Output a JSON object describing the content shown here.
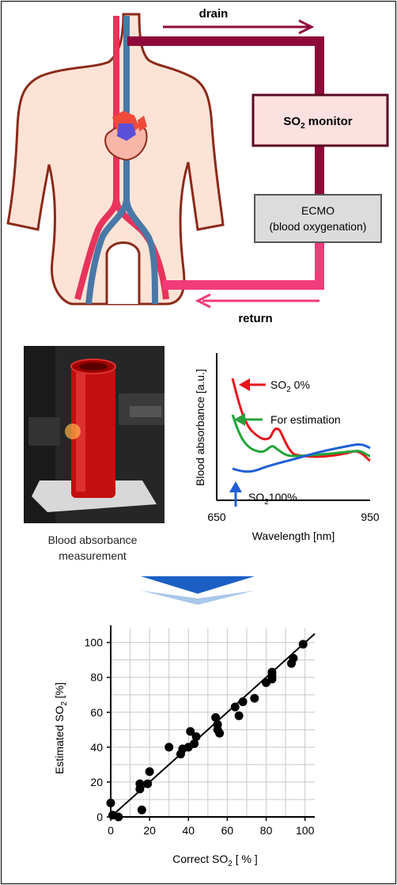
{
  "diagram": {
    "drain_label": "drain",
    "return_label": "return",
    "monitor_label": "SO",
    "monitor_sub": "2",
    "monitor_suffix": " monitor",
    "ecmo_line1": "ECMO",
    "ecmo_line2": "(blood oxygenation)"
  },
  "photo": {
    "caption_line1": "Blood absorbance",
    "caption_line2": "measurement"
  },
  "spectrum": {
    "ylabel": "Blood absorbance [a.u.]",
    "xlabel": "Wavelength [nm]",
    "x_min_label": "650",
    "x_max_label": "950",
    "so2_0_label": "SO",
    "so2_0_sub": "2",
    "so2_0_suffix": " 0%",
    "estimation_label": "For estimation",
    "so2_100_label": "SO",
    "so2_100_sub": "2",
    "so2_100_suffix": "100%",
    "colors": {
      "so2_0": "#e8141c",
      "estimation": "#23a33a",
      "so2_100": "#1f5fd6"
    }
  },
  "chart_data": {
    "type": "scatter",
    "xlabel": "Correct SO",
    "xlabel_sub": "2",
    "xlabel_suffix": " [ % ]",
    "ylabel": "Estimated SO",
    "ylabel_sub": "2",
    "ylabel_suffix": " [%]",
    "xlim": [
      0,
      105
    ],
    "ylim": [
      0,
      108
    ],
    "xticks": [
      0,
      20,
      40,
      60,
      80,
      100
    ],
    "yticks": [
      0,
      20,
      40,
      60,
      80,
      100
    ],
    "grid": true,
    "fit_line": [
      [
        0,
        0
      ],
      [
        105,
        105
      ]
    ],
    "points": [
      [
        0,
        8
      ],
      [
        1,
        1
      ],
      [
        4,
        0
      ],
      [
        15,
        19
      ],
      [
        15,
        16
      ],
      [
        16,
        4
      ],
      [
        19,
        19
      ],
      [
        20,
        26
      ],
      [
        30,
        40
      ],
      [
        36,
        36
      ],
      [
        37,
        39
      ],
      [
        40,
        40
      ],
      [
        41,
        49
      ],
      [
        43,
        42
      ],
      [
        44,
        46
      ],
      [
        54,
        57
      ],
      [
        55,
        50
      ],
      [
        55,
        53
      ],
      [
        56,
        48
      ],
      [
        64,
        63
      ],
      [
        66,
        58
      ],
      [
        68,
        66
      ],
      [
        74,
        68
      ],
      [
        80,
        77
      ],
      [
        83,
        79
      ],
      [
        83,
        81
      ],
      [
        83,
        83
      ],
      [
        93,
        88
      ],
      [
        94,
        91
      ],
      [
        99,
        99
      ]
    ]
  }
}
